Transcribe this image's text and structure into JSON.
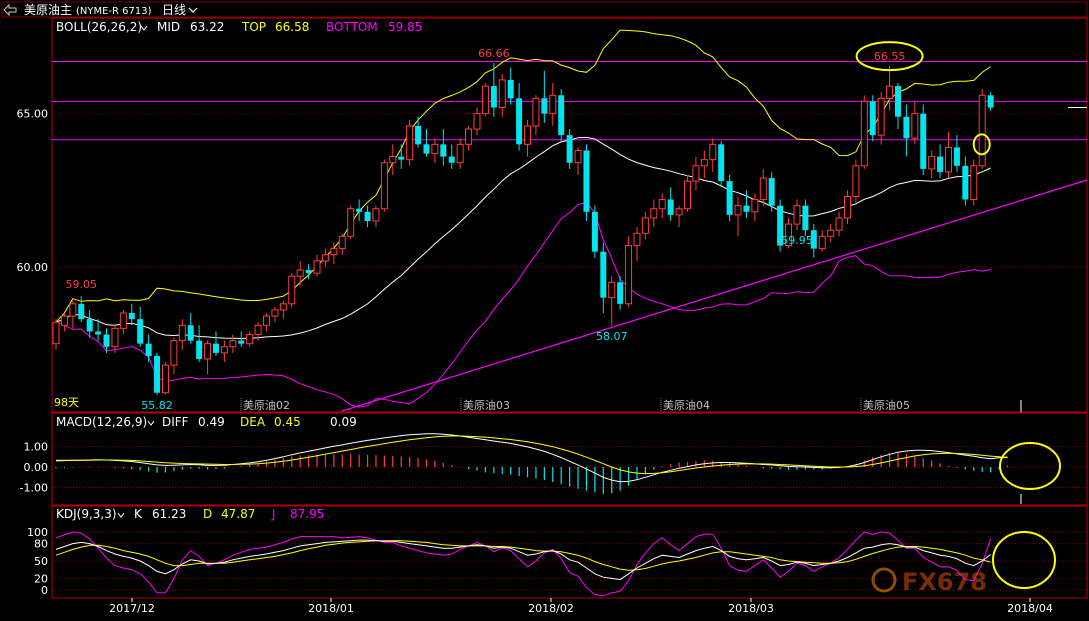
{
  "header": {
    "symbol": "美原油主",
    "code": "(NYME-R 6713)",
    "period": "日线"
  },
  "price_panel": {
    "indicator": "BOLL(26,26,2)",
    "mid_label": "MID",
    "mid_value": "63.22",
    "top_label": "TOP",
    "top_value": "66.58",
    "bottom_label": "BOTTOM",
    "bottom_value": "59.85",
    "y_ticks": [
      "65.00",
      "60.00"
    ],
    "days_label": "98天",
    "contract_labels": [
      "美原油02",
      "美原油03",
      "美原油04",
      "美原油05"
    ],
    "annotations": [
      "59.05",
      "55.82",
      "66.66",
      "58.07",
      "59.95",
      "66.55"
    ],
    "horizontal_levels": [
      66.7,
      65.4,
      64.15
    ]
  },
  "macd_panel": {
    "indicator": "MACD(12,26,9)",
    "diff_label": "DIFF",
    "diff_value": "0.49",
    "dea_label": "DEA",
    "dea_value": "0.45",
    "macd_value": "0.09",
    "y_ticks": [
      "1.00",
      "0.00",
      "-1.00"
    ]
  },
  "kdj_panel": {
    "indicator": "KDJ(9,3,3)",
    "k_label": "K",
    "k_value": "61.23",
    "d_label": "D",
    "d_value": "47.87",
    "j_label": "J",
    "j_value": "87.95",
    "y_ticks": [
      "100",
      "80",
      "50",
      "20",
      "0"
    ]
  },
  "x_axis": {
    "labels": [
      "2017/12",
      "2018/01",
      "2018/02",
      "2018/03",
      "2018/04"
    ]
  },
  "watermark": "FX678",
  "colors": {
    "up": "#ff3c3c",
    "down": "#00e5ee",
    "mid": "#ffffff",
    "top": "#ffff00",
    "bottom": "#ff00ff",
    "grid": "#8b0000",
    "frame": "#b00000"
  },
  "chart_data": [
    {
      "type": "candlestick",
      "title": "美原油主 (NYME-R 6713) 日线",
      "ylim": [
        55.5,
        67.5
      ],
      "y_ticks": [
        65.0,
        60.0
      ],
      "series": [
        {
          "name": "BOLL MID",
          "last": 63.22
        },
        {
          "name": "BOLL TOP",
          "last": 66.58
        },
        {
          "name": "BOLL BOTTOM",
          "last": 59.85
        }
      ],
      "ohlc": [
        [
          57.5,
          58.3,
          57.3,
          58.2
        ],
        [
          58.1,
          58.5,
          57.9,
          58.4
        ],
        [
          58.4,
          58.9,
          58.0,
          58.8
        ],
        [
          58.8,
          59.05,
          58.2,
          58.3
        ],
        [
          58.3,
          58.6,
          57.7,
          57.9
        ],
        [
          57.9,
          58.3,
          57.6,
          57.8
        ],
        [
          57.8,
          58.0,
          57.2,
          57.4
        ],
        [
          57.4,
          58.1,
          57.2,
          58.0
        ],
        [
          58.0,
          58.6,
          57.8,
          58.5
        ],
        [
          58.5,
          58.8,
          58.1,
          58.3
        ],
        [
          58.3,
          58.7,
          57.4,
          57.5
        ],
        [
          57.5,
          57.8,
          56.9,
          57.1
        ],
        [
          57.1,
          57.2,
          55.82,
          55.9
        ],
        [
          55.9,
          56.9,
          55.85,
          56.8
        ],
        [
          56.8,
          57.7,
          56.5,
          57.6
        ],
        [
          57.6,
          58.3,
          57.3,
          58.1
        ],
        [
          58.1,
          58.5,
          57.5,
          57.6
        ],
        [
          57.6,
          58.1,
          56.9,
          57.0
        ],
        [
          57.0,
          57.6,
          56.5,
          57.5
        ],
        [
          57.5,
          57.9,
          57.1,
          57.2
        ],
        [
          57.2,
          57.6,
          56.9,
          57.4
        ],
        [
          57.4,
          57.8,
          57.2,
          57.6
        ],
        [
          57.6,
          57.9,
          57.4,
          57.5
        ],
        [
          57.5,
          57.9,
          57.4,
          57.8
        ],
        [
          57.8,
          58.2,
          57.6,
          58.1
        ],
        [
          58.1,
          58.5,
          57.9,
          58.4
        ],
        [
          58.4,
          58.7,
          58.2,
          58.6
        ],
        [
          58.6,
          58.9,
          58.3,
          58.8
        ],
        [
          58.8,
          59.8,
          58.7,
          59.7
        ],
        [
          59.7,
          60.2,
          59.4,
          59.9
        ],
        [
          59.9,
          60.1,
          59.6,
          59.8
        ],
        [
          59.8,
          60.4,
          59.7,
          60.2
        ],
        [
          60.2,
          60.6,
          60.0,
          60.4
        ],
        [
          60.4,
          60.8,
          60.1,
          60.6
        ],
        [
          60.6,
          61.1,
          60.4,
          61.0
        ],
        [
          61.0,
          62.0,
          60.9,
          61.9
        ],
        [
          61.9,
          62.2,
          61.5,
          61.8
        ],
        [
          61.8,
          62.0,
          61.3,
          61.5
        ],
        [
          61.5,
          62.0,
          61.3,
          61.9
        ],
        [
          61.9,
          63.5,
          61.8,
          63.4
        ],
        [
          63.4,
          64.0,
          63.0,
          63.6
        ],
        [
          63.6,
          64.0,
          63.2,
          63.5
        ],
        [
          63.5,
          64.8,
          63.3,
          64.6
        ],
        [
          64.6,
          64.9,
          63.9,
          64.0
        ],
        [
          64.0,
          64.5,
          63.6,
          63.7
        ],
        [
          63.7,
          64.2,
          63.4,
          64.0
        ],
        [
          64.0,
          64.5,
          63.3,
          63.6
        ],
        [
          63.6,
          64.0,
          63.2,
          63.4
        ],
        [
          63.4,
          64.2,
          63.2,
          64.0
        ],
        [
          64.0,
          64.6,
          63.8,
          64.5
        ],
        [
          64.5,
          65.2,
          64.3,
          65.0
        ],
        [
          65.0,
          66.0,
          64.9,
          65.9
        ],
        [
          65.9,
          66.66,
          64.9,
          65.2
        ],
        [
          65.2,
          66.3,
          64.9,
          66.1
        ],
        [
          66.1,
          66.5,
          65.3,
          65.5
        ],
        [
          65.5,
          66.0,
          63.8,
          64.0
        ],
        [
          64.0,
          64.8,
          63.6,
          64.6
        ],
        [
          64.6,
          65.6,
          64.3,
          65.5
        ],
        [
          65.5,
          66.4,
          64.7,
          65.0
        ],
        [
          65.0,
          66.0,
          64.6,
          65.6
        ],
        [
          65.6,
          65.8,
          64.1,
          64.3
        ],
        [
          64.3,
          64.5,
          63.2,
          63.4
        ],
        [
          63.4,
          63.9,
          63.0,
          63.8
        ],
        [
          63.8,
          64.0,
          61.5,
          61.8
        ],
        [
          61.8,
          62.0,
          60.3,
          60.5
        ],
        [
          60.5,
          60.8,
          58.5,
          59.0
        ],
        [
          59.0,
          59.7,
          58.07,
          59.5
        ],
        [
          59.5,
          59.7,
          58.6,
          58.8
        ],
        [
          58.8,
          61.0,
          58.7,
          60.7
        ],
        [
          60.7,
          61.3,
          60.2,
          61.1
        ],
        [
          61.1,
          61.8,
          60.9,
          61.6
        ],
        [
          61.6,
          62.2,
          61.3,
          61.9
        ],
        [
          61.9,
          62.4,
          61.6,
          62.2
        ],
        [
          62.2,
          62.6,
          61.5,
          61.7
        ],
        [
          61.7,
          62.0,
          61.3,
          61.9
        ],
        [
          61.9,
          63.0,
          61.8,
          62.8
        ],
        [
          62.8,
          63.6,
          62.5,
          63.3
        ],
        [
          63.3,
          63.8,
          62.9,
          63.5
        ],
        [
          63.5,
          64.2,
          63.1,
          64.0
        ],
        [
          64.0,
          64.1,
          62.6,
          62.8
        ],
        [
          62.8,
          63.0,
          61.5,
          61.7
        ],
        [
          61.7,
          62.3,
          61.0,
          62.0
        ],
        [
          62.0,
          62.5,
          61.6,
          61.8
        ],
        [
          61.8,
          62.4,
          61.5,
          62.2
        ],
        [
          62.2,
          63.2,
          62.0,
          62.9
        ],
        [
          62.9,
          63.1,
          61.8,
          62.0
        ],
        [
          62.0,
          62.2,
          60.5,
          60.7
        ],
        [
          60.7,
          61.6,
          60.6,
          61.4
        ],
        [
          61.4,
          62.2,
          61.2,
          62.0
        ],
        [
          62.0,
          62.2,
          61.0,
          61.2
        ],
        [
          61.2,
          61.4,
          60.3,
          60.6
        ],
        [
          60.6,
          61.2,
          60.5,
          61.0
        ],
        [
          61.0,
          61.4,
          60.8,
          61.2
        ],
        [
          61.2,
          61.8,
          61.0,
          61.6
        ],
        [
          61.6,
          62.5,
          61.4,
          62.3
        ],
        [
          62.3,
          63.5,
          62.1,
          63.3
        ],
        [
          63.3,
          65.6,
          63.2,
          65.4
        ],
        [
          65.4,
          65.6,
          64.1,
          64.3
        ],
        [
          64.3,
          65.7,
          64.0,
          65.5
        ],
        [
          65.5,
          66.55,
          65.1,
          65.9
        ],
        [
          65.9,
          66.0,
          64.5,
          64.9
        ],
        [
          64.9,
          65.3,
          63.6,
          64.2
        ],
        [
          64.2,
          65.4,
          64.0,
          65.0
        ],
        [
          65.0,
          65.3,
          63.0,
          63.2
        ],
        [
          63.2,
          63.8,
          62.9,
          63.6
        ],
        [
          63.6,
          64.0,
          62.9,
          63.1
        ],
        [
          63.1,
          64.4,
          62.9,
          63.9
        ],
        [
          63.9,
          64.3,
          63.1,
          63.3
        ],
        [
          63.3,
          63.6,
          62.0,
          62.2
        ],
        [
          62.2,
          63.5,
          62.0,
          63.3
        ],
        [
          63.3,
          65.8,
          63.2,
          65.6
        ],
        [
          65.6,
          65.7,
          65.1,
          65.2
        ]
      ]
    },
    {
      "type": "line",
      "title": "MACD(12,26,9)",
      "ylim": [
        -1.5,
        1.5
      ],
      "series": [
        {
          "name": "DIFF",
          "last": 0.49
        },
        {
          "name": "DEA",
          "last": 0.45
        },
        {
          "name": "MACD",
          "last": 0.09
        }
      ],
      "diff": [
        0.3,
        0.31,
        0.32,
        0.33,
        0.34,
        0.35,
        0.34,
        0.32,
        0.3,
        0.27,
        0.22,
        0.16,
        0.1,
        0.08,
        0.09,
        0.1,
        0.12,
        0.11,
        0.08,
        0.08,
        0.09,
        0.12,
        0.16,
        0.2,
        0.26,
        0.33,
        0.41,
        0.5,
        0.6,
        0.69,
        0.77,
        0.85,
        0.93,
        1.01,
        1.08,
        1.16,
        1.23,
        1.3,
        1.36,
        1.42,
        1.48,
        1.53,
        1.57,
        1.6,
        1.62,
        1.62,
        1.6,
        1.56,
        1.51,
        1.45,
        1.39,
        1.33,
        1.27,
        1.21,
        1.15,
        1.07,
        0.98,
        0.88,
        0.76,
        0.62,
        0.46,
        0.28,
        0.1,
        -0.1,
        -0.3,
        -0.5,
        -0.64,
        -0.72,
        -0.7,
        -0.62,
        -0.5,
        -0.38,
        -0.26,
        -0.16,
        -0.06,
        0.02,
        0.1,
        0.16,
        0.2,
        0.22,
        0.22,
        0.2,
        0.18,
        0.15,
        0.12,
        0.1,
        0.06,
        0.03,
        0.01,
        0.0,
        -0.02,
        -0.04,
        -0.04,
        -0.02,
        0.02,
        0.1,
        0.22,
        0.36,
        0.5,
        0.62,
        0.72,
        0.78,
        0.82,
        0.82,
        0.8,
        0.75,
        0.7,
        0.64,
        0.58,
        0.52,
        0.45,
        0.4,
        0.45,
        0.49
      ],
      "dea": [
        0.33,
        0.33,
        0.33,
        0.33,
        0.33,
        0.34,
        0.34,
        0.34,
        0.33,
        0.32,
        0.3,
        0.27,
        0.24,
        0.21,
        0.19,
        0.17,
        0.16,
        0.15,
        0.14,
        0.13,
        0.12,
        0.12,
        0.13,
        0.14,
        0.16,
        0.19,
        0.23,
        0.28,
        0.34,
        0.41,
        0.48,
        0.55,
        0.63,
        0.7,
        0.78,
        0.85,
        0.93,
        1.0,
        1.07,
        1.14,
        1.21,
        1.27,
        1.33,
        1.38,
        1.43,
        1.47,
        1.5,
        1.51,
        1.51,
        1.5,
        1.48,
        1.46,
        1.42,
        1.38,
        1.34,
        1.29,
        1.23,
        1.16,
        1.08,
        0.99,
        0.88,
        0.76,
        0.63,
        0.48,
        0.32,
        0.16,
        0.0,
        -0.14,
        -0.24,
        -0.3,
        -0.32,
        -0.31,
        -0.28,
        -0.23,
        -0.17,
        -0.11,
        -0.05,
        0.0,
        0.05,
        0.09,
        0.12,
        0.14,
        0.15,
        0.15,
        0.15,
        0.14,
        0.12,
        0.1,
        0.08,
        0.06,
        0.04,
        0.02,
        0.0,
        0.0,
        0.0,
        0.02,
        0.06,
        0.12,
        0.2,
        0.29,
        0.38,
        0.46,
        0.54,
        0.6,
        0.64,
        0.66,
        0.67,
        0.66,
        0.64,
        0.61,
        0.57,
        0.53,
        0.5,
        0.45
      ]
    },
    {
      "type": "line",
      "title": "KDJ(9,3,3)",
      "ylim": [
        -10,
        115
      ],
      "y_ticks": [
        100,
        80,
        50,
        20,
        0
      ],
      "series": [
        {
          "name": "K",
          "last": 61.23
        },
        {
          "name": "D",
          "last": 47.87
        },
        {
          "name": "J",
          "last": 87.95
        }
      ],
      "k": [
        70,
        75,
        80,
        82,
        80,
        75,
        68,
        62,
        58,
        55,
        50,
        42,
        32,
        28,
        35,
        45,
        52,
        50,
        45,
        46,
        48,
        52,
        55,
        58,
        60,
        62,
        65,
        68,
        72,
        76,
        78,
        80,
        82,
        83,
        84,
        85,
        86,
        86,
        85,
        84,
        84,
        82,
        80,
        78,
        76,
        74,
        72,
        72,
        74,
        76,
        78,
        76,
        72,
        74,
        72,
        66,
        60,
        62,
        66,
        68,
        62,
        52,
        48,
        38,
        28,
        22,
        20,
        18,
        28,
        38,
        46,
        54,
        60,
        58,
        56,
        62,
        68,
        72,
        75,
        68,
        58,
        54,
        52,
        54,
        56,
        50,
        42,
        44,
        48,
        46,
        42,
        44,
        46,
        50,
        56,
        64,
        72,
        74,
        78,
        80,
        78,
        74,
        74,
        68,
        64,
        60,
        58,
        54,
        46,
        42,
        50,
        61.23
      ],
      "d": [
        60,
        65,
        70,
        74,
        77,
        77,
        75,
        72,
        68,
        65,
        62,
        58,
        52,
        46,
        42,
        42,
        44,
        46,
        46,
        46,
        46,
        48,
        50,
        52,
        54,
        56,
        58,
        61,
        64,
        68,
        71,
        74,
        77,
        79,
        81,
        82,
        83,
        84,
        85,
        85,
        85,
        85,
        84,
        83,
        82,
        80,
        78,
        77,
        76,
        76,
        76,
        76,
        75,
        75,
        74,
        72,
        70,
        68,
        67,
        67,
        66,
        63,
        60,
        55,
        49,
        44,
        40,
        36,
        34,
        35,
        37,
        41,
        45,
        48,
        50,
        53,
        56,
        60,
        64,
        66,
        66,
        64,
        62,
        60,
        58,
        56,
        52,
        50,
        49,
        48,
        47,
        46,
        46,
        47,
        49,
        53,
        58,
        63,
        67,
        71,
        74,
        75,
        75,
        74,
        72,
        70,
        67,
        64,
        60,
        55,
        52,
        47.87
      ],
      "j": [
        90,
        95,
        100,
        98,
        88,
        72,
        55,
        42,
        38,
        35,
        28,
        14,
        -5,
        -5,
        20,
        52,
        68,
        58,
        42,
        46,
        52,
        60,
        65,
        70,
        72,
        74,
        78,
        82,
        88,
        92,
        92,
        92,
        92,
        92,
        90,
        91,
        92,
        90,
        86,
        82,
        82,
        76,
        72,
        68,
        64,
        62,
        60,
        62,
        70,
        76,
        82,
        76,
        66,
        72,
        68,
        54,
        40,
        50,
        64,
        70,
        54,
        30,
        24,
        4,
        -8,
        -10,
        -5,
        -2,
        16,
        44,
        64,
        80,
        90,
        78,
        68,
        80,
        92,
        96,
        96,
        72,
        42,
        34,
        32,
        42,
        52,
        38,
        22,
        32,
        46,
        42,
        32,
        40,
        46,
        56,
        70,
        86,
        100,
        96,
        100,
        98,
        86,
        72,
        72,
        56,
        48,
        40,
        40,
        34,
        18,
        16,
        46,
        87.95
      ]
    }
  ]
}
